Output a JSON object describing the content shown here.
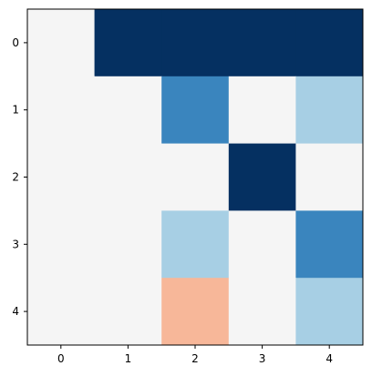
{
  "chart_data": {
    "type": "heatmap",
    "title": "",
    "xlabel": "",
    "ylabel": "",
    "x": [
      "0",
      "1",
      "2",
      "3",
      "4"
    ],
    "y": [
      "0",
      "1",
      "2",
      "3",
      "4"
    ],
    "values": [
      [
        0.0,
        2.0,
        2.0,
        2.0,
        2.0
      ],
      [
        0.0,
        0.0,
        1.2,
        0.0,
        0.6
      ],
      [
        0.0,
        0.0,
        0.0,
        2.0,
        0.0
      ],
      [
        0.0,
        0.0,
        0.6,
        0.0,
        1.2
      ],
      [
        0.0,
        0.0,
        -0.6,
        0.0,
        0.6
      ]
    ],
    "vlim": [
      -2,
      2
    ],
    "colormap": "RdBu",
    "colors": {
      "2.0": "#053061",
      "1.2": "#3a85be",
      "0.6": "#a7cfe4",
      "0.0": "#f5f5f5",
      "-0.6": "#f7b799"
    },
    "grid": false
  }
}
